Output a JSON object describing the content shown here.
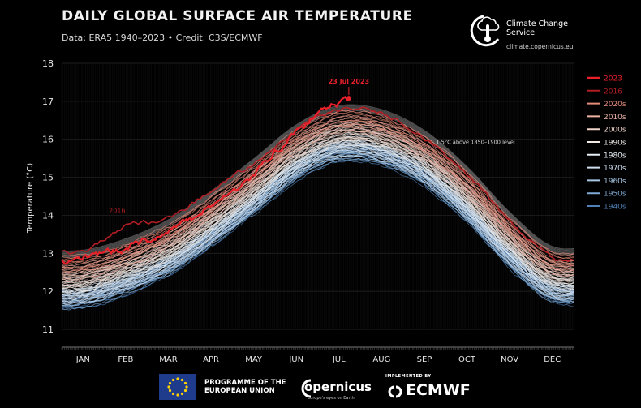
{
  "header": {
    "title": "DAILY GLOBAL SURFACE AIR TEMPERATURE",
    "subtitle": "Data: ERA5 1940–2023 • Credit: C3S/ECMWF"
  },
  "branding": {
    "ccs_name": "Climate Change Service",
    "ccs_url": "climate.copernicus.eu",
    "eu_programme": "PROGRAMME OF THE EUROPEAN UNION",
    "copernicus": "opernicus",
    "copernicus_tagline": "Europe's eyes on Earth",
    "ecmwf_impl": "IMPLEMENTED BY",
    "ecmwf": "ECMWF"
  },
  "colors": {
    "y2023": "#e8202a",
    "y2016": "#b01e24",
    "d2020s": "#e58b7a",
    "d2010s": "#ecb3a4",
    "d2000s": "#f0d3c8",
    "d1990s": "#f2e9e3",
    "d1980s": "#e6eef5",
    "d1970s": "#cfdff0",
    "d1960s": "#a9c8e6",
    "d1950s": "#7fabd6",
    "d1940s": "#4f81b8",
    "threshold": "#8a8a8a"
  },
  "chart_data": {
    "type": "line",
    "title": "DAILY GLOBAL SURFACE AIR TEMPERATURE",
    "ylabel": "Temperature (°C)",
    "xlabel": "",
    "ylim": [
      11,
      18
    ],
    "yticks": [
      11,
      12,
      13,
      14,
      15,
      16,
      17,
      18
    ],
    "grid": true,
    "legend_position": "right",
    "categories": [
      "JAN",
      "FEB",
      "MAR",
      "APR",
      "MAY",
      "JUN",
      "JUL",
      "AUG",
      "SEP",
      "OCT",
      "NOV",
      "DEC"
    ],
    "annotations": [
      {
        "text": "23 Jul 2023",
        "x": "2023-07-23",
        "y": 17.08
      },
      {
        "text": "2016",
        "x": "2016-02-10",
        "y": 14.15
      },
      {
        "text": "1.5°C above 1850–1900 level",
        "x": "09-30",
        "y": 15.8
      }
    ],
    "series": [
      {
        "name": "2023",
        "values": [
          12.85,
          13.15,
          13.6,
          14.25,
          15.1,
          16.2,
          16.95,
          16.85,
          16.4,
          15.35,
          14.0,
          13.05
        ]
      },
      {
        "name": "2016",
        "values": [
          13.05,
          13.7,
          13.95,
          14.65,
          15.35,
          16.3,
          16.75,
          16.65,
          16.05,
          15.05,
          13.85,
          12.9
        ]
      },
      {
        "name": "2020s",
        "values": [
          12.75,
          13.05,
          13.55,
          14.3,
          15.15,
          16.05,
          16.55,
          16.45,
          15.9,
          14.95,
          13.75,
          12.85
        ]
      },
      {
        "name": "2010s",
        "values": [
          12.5,
          12.85,
          13.35,
          14.1,
          14.95,
          15.85,
          16.35,
          16.25,
          15.7,
          14.75,
          13.55,
          12.65
        ]
      },
      {
        "name": "2000s",
        "values": [
          12.35,
          12.7,
          13.2,
          13.95,
          14.8,
          15.7,
          16.2,
          16.1,
          15.55,
          14.6,
          13.4,
          12.5
        ]
      },
      {
        "name": "1990s",
        "values": [
          12.2,
          12.55,
          13.05,
          13.8,
          14.65,
          15.55,
          16.05,
          15.95,
          15.4,
          14.45,
          13.25,
          12.35
        ]
      },
      {
        "name": "1980s",
        "values": [
          12.05,
          12.4,
          12.9,
          13.65,
          14.5,
          15.4,
          15.9,
          15.8,
          15.25,
          14.3,
          13.1,
          12.2
        ]
      },
      {
        "name": "1970s",
        "values": [
          11.9,
          12.25,
          12.75,
          13.5,
          14.35,
          15.25,
          15.75,
          15.65,
          15.1,
          14.15,
          12.95,
          12.05
        ]
      },
      {
        "name": "1960s",
        "values": [
          11.85,
          12.2,
          12.7,
          13.45,
          14.3,
          15.2,
          15.7,
          15.6,
          15.05,
          14.1,
          12.9,
          12.0
        ]
      },
      {
        "name": "1950s",
        "values": [
          11.8,
          12.15,
          12.65,
          13.4,
          14.25,
          15.15,
          15.65,
          15.55,
          15.0,
          14.05,
          12.85,
          11.95
        ]
      },
      {
        "name": "1940s",
        "values": [
          11.75,
          12.1,
          12.6,
          13.35,
          14.2,
          15.1,
          15.6,
          15.5,
          14.95,
          14.0,
          12.8,
          11.9
        ]
      }
    ]
  }
}
